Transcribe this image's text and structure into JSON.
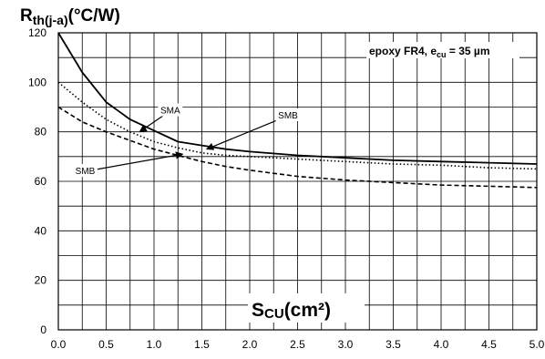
{
  "chart_data": {
    "type": "line",
    "ylabel_main": "R",
    "ylabel_sub": "th(j-a)",
    "ylabel_unit": "(°C/W)",
    "xlabel_main": "S",
    "xlabel_sub": "CU",
    "xlabel_unit": "(cm²)",
    "annotation_prefix": "epoxy FR4, e",
    "annotation_sub": "cu",
    "annotation_suffix": " = 35 µm",
    "xlim": [
      0,
      5
    ],
    "ylim": [
      0,
      120
    ],
    "xticks": [
      "0.0",
      "0.5",
      "1.0",
      "1.5",
      "2.0",
      "2.5",
      "3.0",
      "3.5",
      "4.0",
      "4.5",
      "5.0"
    ],
    "yticks": [
      "0",
      "20",
      "40",
      "60",
      "80",
      "100",
      "120"
    ],
    "grid": true,
    "series": [
      {
        "name": "SMA",
        "style": "solid",
        "x": [
          0,
          0.25,
          0.5,
          0.75,
          1.0,
          1.25,
          1.5,
          1.75,
          2.0,
          2.5,
          3.0,
          3.5,
          4.0,
          4.5,
          5.0
        ],
        "y": [
          120,
          104,
          92,
          85,
          80.5,
          76,
          74.5,
          73,
          72,
          70.5,
          69.5,
          68.5,
          68,
          67.5,
          67
        ]
      },
      {
        "name": "SMB",
        "style": "dotted",
        "x": [
          0,
          0.25,
          0.5,
          0.75,
          1.0,
          1.25,
          1.5,
          1.75,
          2.0,
          2.5,
          3.0,
          3.5,
          4.0,
          4.5,
          5.0
        ],
        "y": [
          100,
          92,
          85,
          80,
          76,
          73.5,
          71.5,
          70.5,
          70,
          69,
          68,
          67,
          66.5,
          65.5,
          65
        ]
      },
      {
        "name": "SMB",
        "style": "dashed",
        "x": [
          0,
          0.25,
          0.5,
          0.75,
          1.0,
          1.25,
          1.5,
          1.75,
          2.0,
          2.5,
          3.0,
          3.5,
          4.0,
          4.5,
          5.0
        ],
        "y": [
          90,
          84,
          80,
          76.5,
          73,
          70.5,
          68,
          66,
          64.5,
          62,
          60.5,
          59.5,
          58.5,
          58,
          57.5
        ]
      }
    ],
    "labels": [
      {
        "text": "SMA",
        "x": 1.17,
        "y": 88.5,
        "arrow_to": [
          0.85,
          80
        ]
      },
      {
        "text": "SMB",
        "x": 2.4,
        "y": 86.5,
        "arrow_to": [
          1.55,
          73
        ]
      },
      {
        "text": "SMB",
        "x": 0.28,
        "y": 64,
        "arrow_to": [
          1.3,
          71
        ]
      }
    ]
  }
}
